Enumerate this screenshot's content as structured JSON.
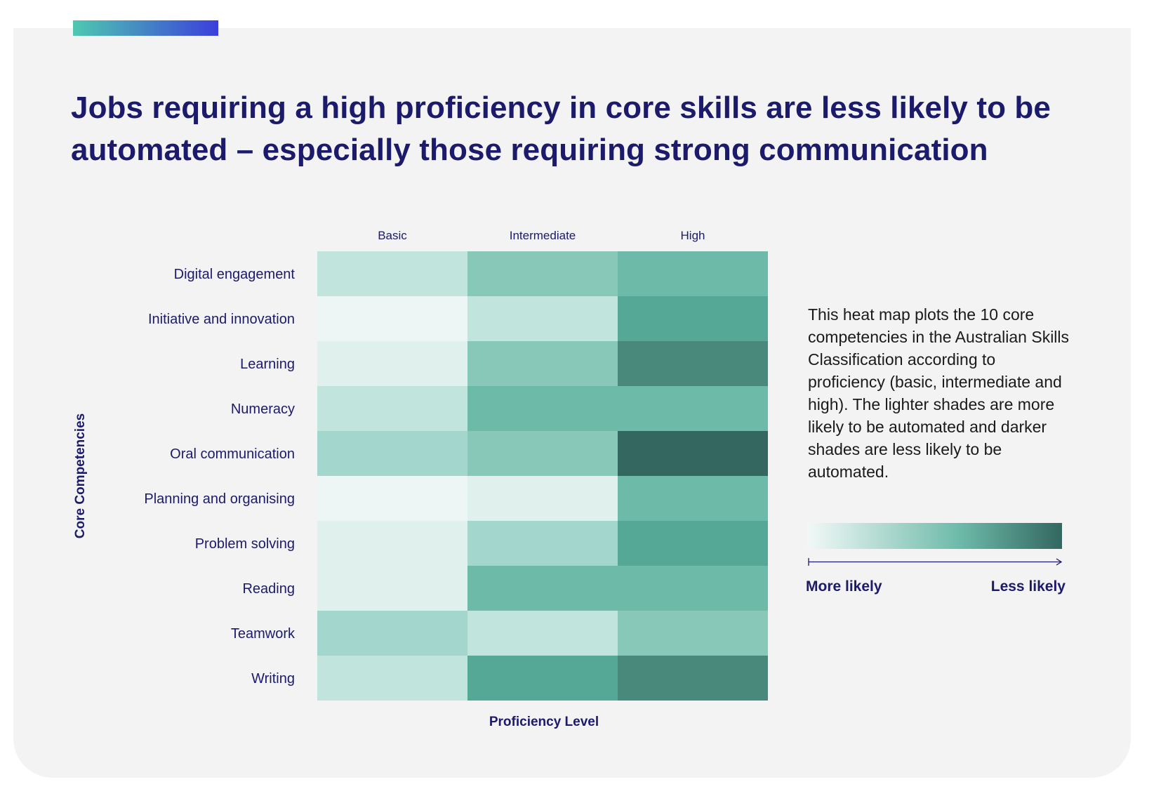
{
  "title": "Jobs requiring a high proficiency in core skills are less likely to be automated – especially those requiring strong communication",
  "note": "This heat map plots the 10 core competencies in the Australian Skills Classification according to proficiency (basic, intermediate and high). The lighter shades are more likely to be automated and darker shades are less likely to be automated.",
  "legend": {
    "low_label": "More likely",
    "high_label": "Less likely",
    "color_low": "#f1f8f7",
    "color_mid": "#6dbaa9",
    "color_high": "#33675f"
  },
  "colors": {
    "title": "#1b1a6b",
    "card_background": "#f3f3f3",
    "accent_start": "#4ec9b0",
    "accent_end": "#3b3fdb"
  },
  "chart_data": {
    "type": "heatmap",
    "xlabel": "Proficiency Level",
    "ylabel": "Core Competencies",
    "x_categories": [
      "Basic",
      "Intermediate",
      "High"
    ],
    "y_categories": [
      "Digital engagement",
      "Initiative and innovation",
      "Learning",
      "Numeracy",
      "Oral communication",
      "Planning and organising",
      "Problem solving",
      "Reading",
      "Teamwork",
      "Writing"
    ],
    "values": [
      [
        3,
        5,
        6
      ],
      [
        1,
        3,
        7
      ],
      [
        2,
        5,
        8
      ],
      [
        3,
        6,
        6
      ],
      [
        4,
        5,
        9
      ],
      [
        1,
        2,
        6
      ],
      [
        2,
        4,
        7
      ],
      [
        2,
        6,
        6
      ],
      [
        4,
        3,
        5
      ],
      [
        3,
        7,
        8
      ]
    ],
    "value_scale": [
      0,
      9
    ],
    "scale_meaning": "lighter = more likely to be automated, darker = less likely to be automated",
    "palette": [
      "#f1f8f7",
      "#eef6f5",
      "#e0f0ed",
      "#c1e4dd",
      "#a3d6cc",
      "#87c8b8",
      "#6dbaa9",
      "#56a896",
      "#48897b",
      "#33675f"
    ]
  }
}
